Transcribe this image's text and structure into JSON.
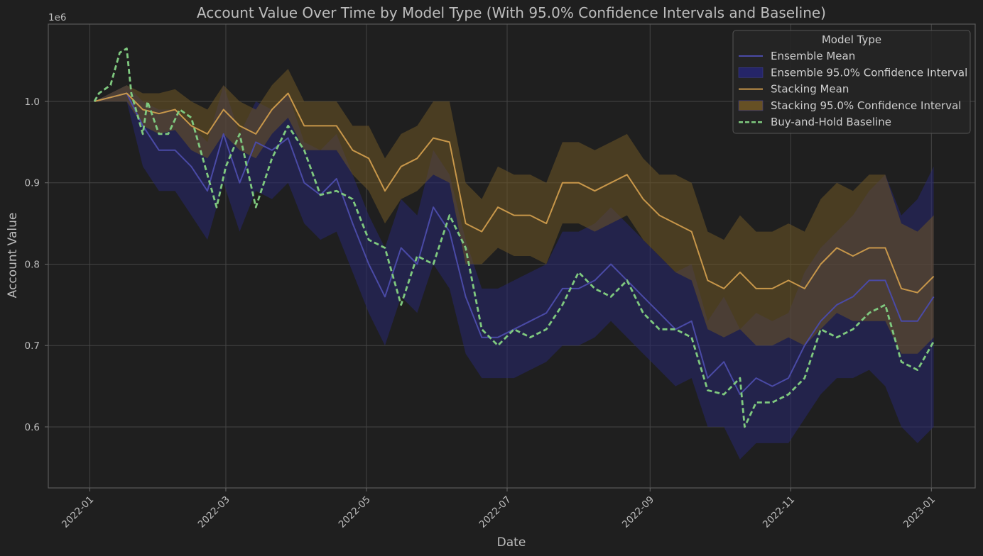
{
  "chart_data": {
    "type": "line",
    "title": "Account Value Over Time by Model Type (With 95.0% Confidence Intervals and Baseline)",
    "xlabel": "Date",
    "ylabel": "Account Value",
    "y_offset_label": "1e6",
    "x_tick_labels": [
      "2022-01",
      "2022-03",
      "2022-05",
      "2022-07",
      "2022-09",
      "2022-11",
      "2023-01"
    ],
    "y_tick_labels": [
      "0.6",
      "0.7",
      "0.8",
      "0.9",
      "1.0"
    ],
    "y_ticks": [
      0.6,
      0.7,
      0.8,
      0.9,
      1.0
    ],
    "xlim": [
      "2021-12-14",
      "2023-01-20"
    ],
    "ylim": [
      0.525,
      1.095
    ],
    "grid": true,
    "legend": {
      "title": "Model Type",
      "placement": "top-right",
      "entries": [
        "Ensemble Mean",
        "Ensemble 95.0% Confidence Interval",
        "Stacking Mean",
        "Stacking 95.0% Confidence Interval",
        "Buy-and-Hold Baseline"
      ]
    },
    "colors": {
      "ensemble": "#4a4aa6",
      "ensemble_ci": "#262670",
      "stacking": "#c8974a",
      "stacking_ci": "#6e5525",
      "baseline": "#7fc97f",
      "background": "#1f1f1f",
      "grid": "#444444"
    },
    "series": [
      {
        "name": "Ensemble Mean",
        "x": [
          "2022-01-03",
          "2022-01-10",
          "2022-01-17",
          "2022-01-24",
          "2022-01-31",
          "2022-02-07",
          "2022-02-14",
          "2022-02-21",
          "2022-02-28",
          "2022-03-07",
          "2022-03-14",
          "2022-03-21",
          "2022-03-28",
          "2022-04-04",
          "2022-04-11",
          "2022-04-18",
          "2022-04-25",
          "2022-05-02",
          "2022-05-09",
          "2022-05-16",
          "2022-05-23",
          "2022-05-30",
          "2022-06-06",
          "2022-06-13",
          "2022-06-20",
          "2022-06-27",
          "2022-07-04",
          "2022-07-11",
          "2022-07-18",
          "2022-07-25",
          "2022-08-01",
          "2022-08-08",
          "2022-08-15",
          "2022-08-22",
          "2022-08-29",
          "2022-09-05",
          "2022-09-12",
          "2022-09-19",
          "2022-09-26",
          "2022-10-03",
          "2022-10-10",
          "2022-10-17",
          "2022-10-24",
          "2022-10-31",
          "2022-11-07",
          "2022-11-14",
          "2022-11-21",
          "2022-11-28",
          "2022-12-05",
          "2022-12-12",
          "2022-12-19",
          "2022-12-26",
          "2023-01-02"
        ],
        "values": [
          1.0,
          1.005,
          1.01,
          0.97,
          0.94,
          0.94,
          0.92,
          0.89,
          0.96,
          0.9,
          0.95,
          0.94,
          0.955,
          0.9,
          0.885,
          0.905,
          0.85,
          0.8,
          0.76,
          0.82,
          0.8,
          0.87,
          0.84,
          0.76,
          0.71,
          0.71,
          0.72,
          0.73,
          0.74,
          0.77,
          0.77,
          0.78,
          0.8,
          0.78,
          0.76,
          0.74,
          0.72,
          0.73,
          0.66,
          0.68,
          0.64,
          0.66,
          0.65,
          0.66,
          0.7,
          0.73,
          0.75,
          0.76,
          0.78,
          0.78,
          0.73,
          0.73,
          0.76
        ]
      },
      {
        "name": "Ensemble 95.0% Confidence Interval",
        "x": [
          "2022-01-03",
          "2022-01-10",
          "2022-01-17",
          "2022-01-24",
          "2022-01-31",
          "2022-02-07",
          "2022-02-14",
          "2022-02-21",
          "2022-02-28",
          "2022-03-07",
          "2022-03-14",
          "2022-03-21",
          "2022-03-28",
          "2022-04-04",
          "2022-04-11",
          "2022-04-18",
          "2022-04-25",
          "2022-05-02",
          "2022-05-09",
          "2022-05-16",
          "2022-05-23",
          "2022-05-30",
          "2022-06-06",
          "2022-06-13",
          "2022-06-20",
          "2022-06-27",
          "2022-07-04",
          "2022-07-11",
          "2022-07-18",
          "2022-07-25",
          "2022-08-01",
          "2022-08-08",
          "2022-08-15",
          "2022-08-22",
          "2022-08-29",
          "2022-09-05",
          "2022-09-12",
          "2022-09-19",
          "2022-09-26",
          "2022-10-03",
          "2022-10-10",
          "2022-10-17",
          "2022-10-24",
          "2022-10-31",
          "2022-11-07",
          "2022-11-14",
          "2022-11-21",
          "2022-11-28",
          "2022-12-05",
          "2022-12-12",
          "2022-12-19",
          "2022-12-26",
          "2023-01-02"
        ],
        "lower": [
          1.0,
          1.0,
          1.0,
          0.92,
          0.89,
          0.89,
          0.86,
          0.83,
          0.9,
          0.84,
          0.89,
          0.88,
          0.9,
          0.85,
          0.83,
          0.84,
          0.79,
          0.74,
          0.7,
          0.76,
          0.74,
          0.8,
          0.77,
          0.69,
          0.66,
          0.66,
          0.66,
          0.67,
          0.68,
          0.7,
          0.7,
          0.71,
          0.73,
          0.71,
          0.69,
          0.67,
          0.65,
          0.66,
          0.6,
          0.6,
          0.56,
          0.58,
          0.58,
          0.58,
          0.61,
          0.64,
          0.66,
          0.66,
          0.67,
          0.65,
          0.6,
          0.58,
          0.6
        ],
        "upper": [
          1.0,
          1.01,
          1.02,
          1.0,
          0.99,
          0.99,
          0.97,
          0.95,
          1.02,
          0.96,
          1.0,
          0.99,
          1.01,
          0.95,
          0.94,
          0.96,
          0.91,
          0.86,
          0.82,
          0.88,
          0.86,
          0.94,
          0.91,
          0.83,
          0.77,
          0.77,
          0.78,
          0.79,
          0.8,
          0.84,
          0.84,
          0.85,
          0.87,
          0.85,
          0.83,
          0.81,
          0.79,
          0.8,
          0.73,
          0.76,
          0.72,
          0.74,
          0.73,
          0.74,
          0.79,
          0.82,
          0.84,
          0.86,
          0.89,
          0.91,
          0.86,
          0.88,
          0.92
        ]
      },
      {
        "name": "Stacking Mean",
        "x": [
          "2022-01-03",
          "2022-01-10",
          "2022-01-17",
          "2022-01-24",
          "2022-01-31",
          "2022-02-07",
          "2022-02-14",
          "2022-02-21",
          "2022-02-28",
          "2022-03-07",
          "2022-03-14",
          "2022-03-21",
          "2022-03-28",
          "2022-04-04",
          "2022-04-11",
          "2022-04-18",
          "2022-04-25",
          "2022-05-02",
          "2022-05-09",
          "2022-05-16",
          "2022-05-23",
          "2022-05-30",
          "2022-06-06",
          "2022-06-13",
          "2022-06-20",
          "2022-06-27",
          "2022-07-04",
          "2022-07-11",
          "2022-07-18",
          "2022-07-25",
          "2022-08-01",
          "2022-08-08",
          "2022-08-15",
          "2022-08-22",
          "2022-08-29",
          "2022-09-05",
          "2022-09-12",
          "2022-09-19",
          "2022-09-26",
          "2022-10-03",
          "2022-10-10",
          "2022-10-17",
          "2022-10-24",
          "2022-10-31",
          "2022-11-07",
          "2022-11-14",
          "2022-11-21",
          "2022-11-28",
          "2022-12-05",
          "2022-12-12",
          "2022-12-19",
          "2022-12-26",
          "2023-01-02"
        ],
        "values": [
          1.0,
          1.005,
          1.01,
          0.99,
          0.985,
          0.99,
          0.97,
          0.96,
          0.99,
          0.97,
          0.96,
          0.99,
          1.01,
          0.97,
          0.97,
          0.97,
          0.94,
          0.93,
          0.89,
          0.92,
          0.93,
          0.955,
          0.95,
          0.85,
          0.84,
          0.87,
          0.86,
          0.86,
          0.85,
          0.9,
          0.9,
          0.89,
          0.9,
          0.91,
          0.88,
          0.86,
          0.85,
          0.84,
          0.78,
          0.77,
          0.79,
          0.77,
          0.77,
          0.78,
          0.77,
          0.8,
          0.82,
          0.81,
          0.82,
          0.82,
          0.77,
          0.765,
          0.785
        ]
      },
      {
        "name": "Stacking 95.0% Confidence Interval",
        "x": [
          "2022-01-03",
          "2022-01-10",
          "2022-01-17",
          "2022-01-24",
          "2022-01-31",
          "2022-02-07",
          "2022-02-14",
          "2022-02-21",
          "2022-02-28",
          "2022-03-07",
          "2022-03-14",
          "2022-03-21",
          "2022-03-28",
          "2022-04-04",
          "2022-04-11",
          "2022-04-18",
          "2022-04-25",
          "2022-05-02",
          "2022-05-09",
          "2022-05-16",
          "2022-05-23",
          "2022-05-30",
          "2022-06-06",
          "2022-06-13",
          "2022-06-20",
          "2022-06-27",
          "2022-07-04",
          "2022-07-11",
          "2022-07-18",
          "2022-07-25",
          "2022-08-01",
          "2022-08-08",
          "2022-08-15",
          "2022-08-22",
          "2022-08-29",
          "2022-09-05",
          "2022-09-12",
          "2022-09-19",
          "2022-09-26",
          "2022-10-03",
          "2022-10-10",
          "2022-10-17",
          "2022-10-24",
          "2022-10-31",
          "2022-11-07",
          "2022-11-14",
          "2022-11-21",
          "2022-11-28",
          "2022-12-05",
          "2022-12-12",
          "2022-12-19",
          "2022-12-26",
          "2023-01-02"
        ],
        "lower": [
          1.0,
          1.0,
          1.0,
          0.97,
          0.96,
          0.965,
          0.94,
          0.93,
          0.96,
          0.94,
          0.93,
          0.96,
          0.98,
          0.94,
          0.94,
          0.94,
          0.91,
          0.89,
          0.85,
          0.88,
          0.89,
          0.91,
          0.9,
          0.8,
          0.8,
          0.82,
          0.81,
          0.81,
          0.8,
          0.85,
          0.85,
          0.84,
          0.85,
          0.86,
          0.83,
          0.81,
          0.79,
          0.78,
          0.72,
          0.71,
          0.72,
          0.7,
          0.7,
          0.71,
          0.7,
          0.72,
          0.74,
          0.73,
          0.73,
          0.73,
          0.69,
          0.69,
          0.71
        ],
        "upper": [
          1.0,
          1.01,
          1.02,
          1.01,
          1.01,
          1.015,
          1.0,
          0.99,
          1.02,
          1.0,
          0.99,
          1.02,
          1.04,
          1.0,
          1.0,
          1.0,
          0.97,
          0.97,
          0.93,
          0.96,
          0.97,
          1.0,
          1.0,
          0.9,
          0.88,
          0.92,
          0.91,
          0.91,
          0.9,
          0.95,
          0.95,
          0.94,
          0.95,
          0.96,
          0.93,
          0.91,
          0.91,
          0.9,
          0.84,
          0.83,
          0.86,
          0.84,
          0.84,
          0.85,
          0.84,
          0.88,
          0.9,
          0.89,
          0.91,
          0.91,
          0.85,
          0.84,
          0.86
        ]
      },
      {
        "name": "Buy-and-Hold Baseline",
        "x": [
          "2022-01-03",
          "2022-01-05",
          "2022-01-10",
          "2022-01-12",
          "2022-01-14",
          "2022-01-17",
          "2022-01-19",
          "2022-01-24",
          "2022-01-26",
          "2022-01-31",
          "2022-02-04",
          "2022-02-09",
          "2022-02-14",
          "2022-02-21",
          "2022-02-25",
          "2022-03-01",
          "2022-03-07",
          "2022-03-14",
          "2022-03-21",
          "2022-03-28",
          "2022-04-04",
          "2022-04-11",
          "2022-04-18",
          "2022-04-25",
          "2022-05-02",
          "2022-05-09",
          "2022-05-11",
          "2022-05-16",
          "2022-05-23",
          "2022-05-30",
          "2022-06-06",
          "2022-06-13",
          "2022-06-20",
          "2022-06-27",
          "2022-07-04",
          "2022-07-11",
          "2022-07-18",
          "2022-07-25",
          "2022-08-01",
          "2022-08-08",
          "2022-08-15",
          "2022-08-22",
          "2022-08-29",
          "2022-09-05",
          "2022-09-12",
          "2022-09-19",
          "2022-09-26",
          "2022-10-03",
          "2022-10-10",
          "2022-10-12",
          "2022-10-17",
          "2022-10-24",
          "2022-10-31",
          "2022-11-07",
          "2022-11-14",
          "2022-11-21",
          "2022-11-28",
          "2022-12-05",
          "2022-12-12",
          "2022-12-19",
          "2022-12-26",
          "2023-01-02"
        ],
        "values": [
          1.0,
          1.01,
          1.02,
          1.04,
          1.06,
          1.065,
          1.01,
          0.96,
          1.0,
          0.96,
          0.96,
          0.99,
          0.98,
          0.91,
          0.87,
          0.92,
          0.96,
          0.87,
          0.93,
          0.97,
          0.94,
          0.885,
          0.89,
          0.88,
          0.83,
          0.82,
          0.8,
          0.75,
          0.81,
          0.8,
          0.86,
          0.82,
          0.72,
          0.7,
          0.72,
          0.71,
          0.72,
          0.75,
          0.79,
          0.77,
          0.76,
          0.78,
          0.74,
          0.72,
          0.72,
          0.71,
          0.645,
          0.64,
          0.66,
          0.6,
          0.63,
          0.63,
          0.64,
          0.66,
          0.72,
          0.71,
          0.72,
          0.74,
          0.75,
          0.68,
          0.67,
          0.705
        ]
      }
    ]
  }
}
